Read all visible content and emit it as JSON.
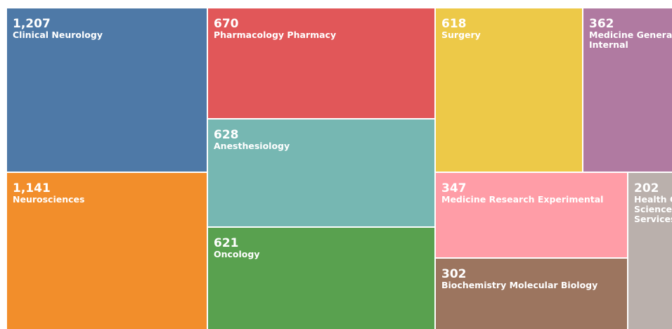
{
  "chart_data": {
    "type": "treemap",
    "categories": [
      "Clinical Neurology",
      "Neurosciences",
      "Pharmacology Pharmacy",
      "Anesthesiology",
      "Oncology",
      "Surgery",
      "Medicine General Internal",
      "Medicine Research Experimental",
      "Biochemistry Molecular Biology",
      "Health Care Sciences Services"
    ],
    "values": [
      1207,
      1141,
      670,
      628,
      621,
      618,
      362,
      347,
      302,
      202
    ],
    "value_labels": [
      "1,207",
      "1,141",
      "670",
      "628",
      "621",
      "618",
      "362",
      "347",
      "302",
      "202"
    ],
    "colors": [
      "#4e79a7",
      "#f28e2b",
      "#e15759",
      "#76b7b2",
      "#59a14f",
      "#edc948",
      "#b07aa1",
      "#ff9da7",
      "#9c755f",
      "#bab0ac"
    ]
  }
}
